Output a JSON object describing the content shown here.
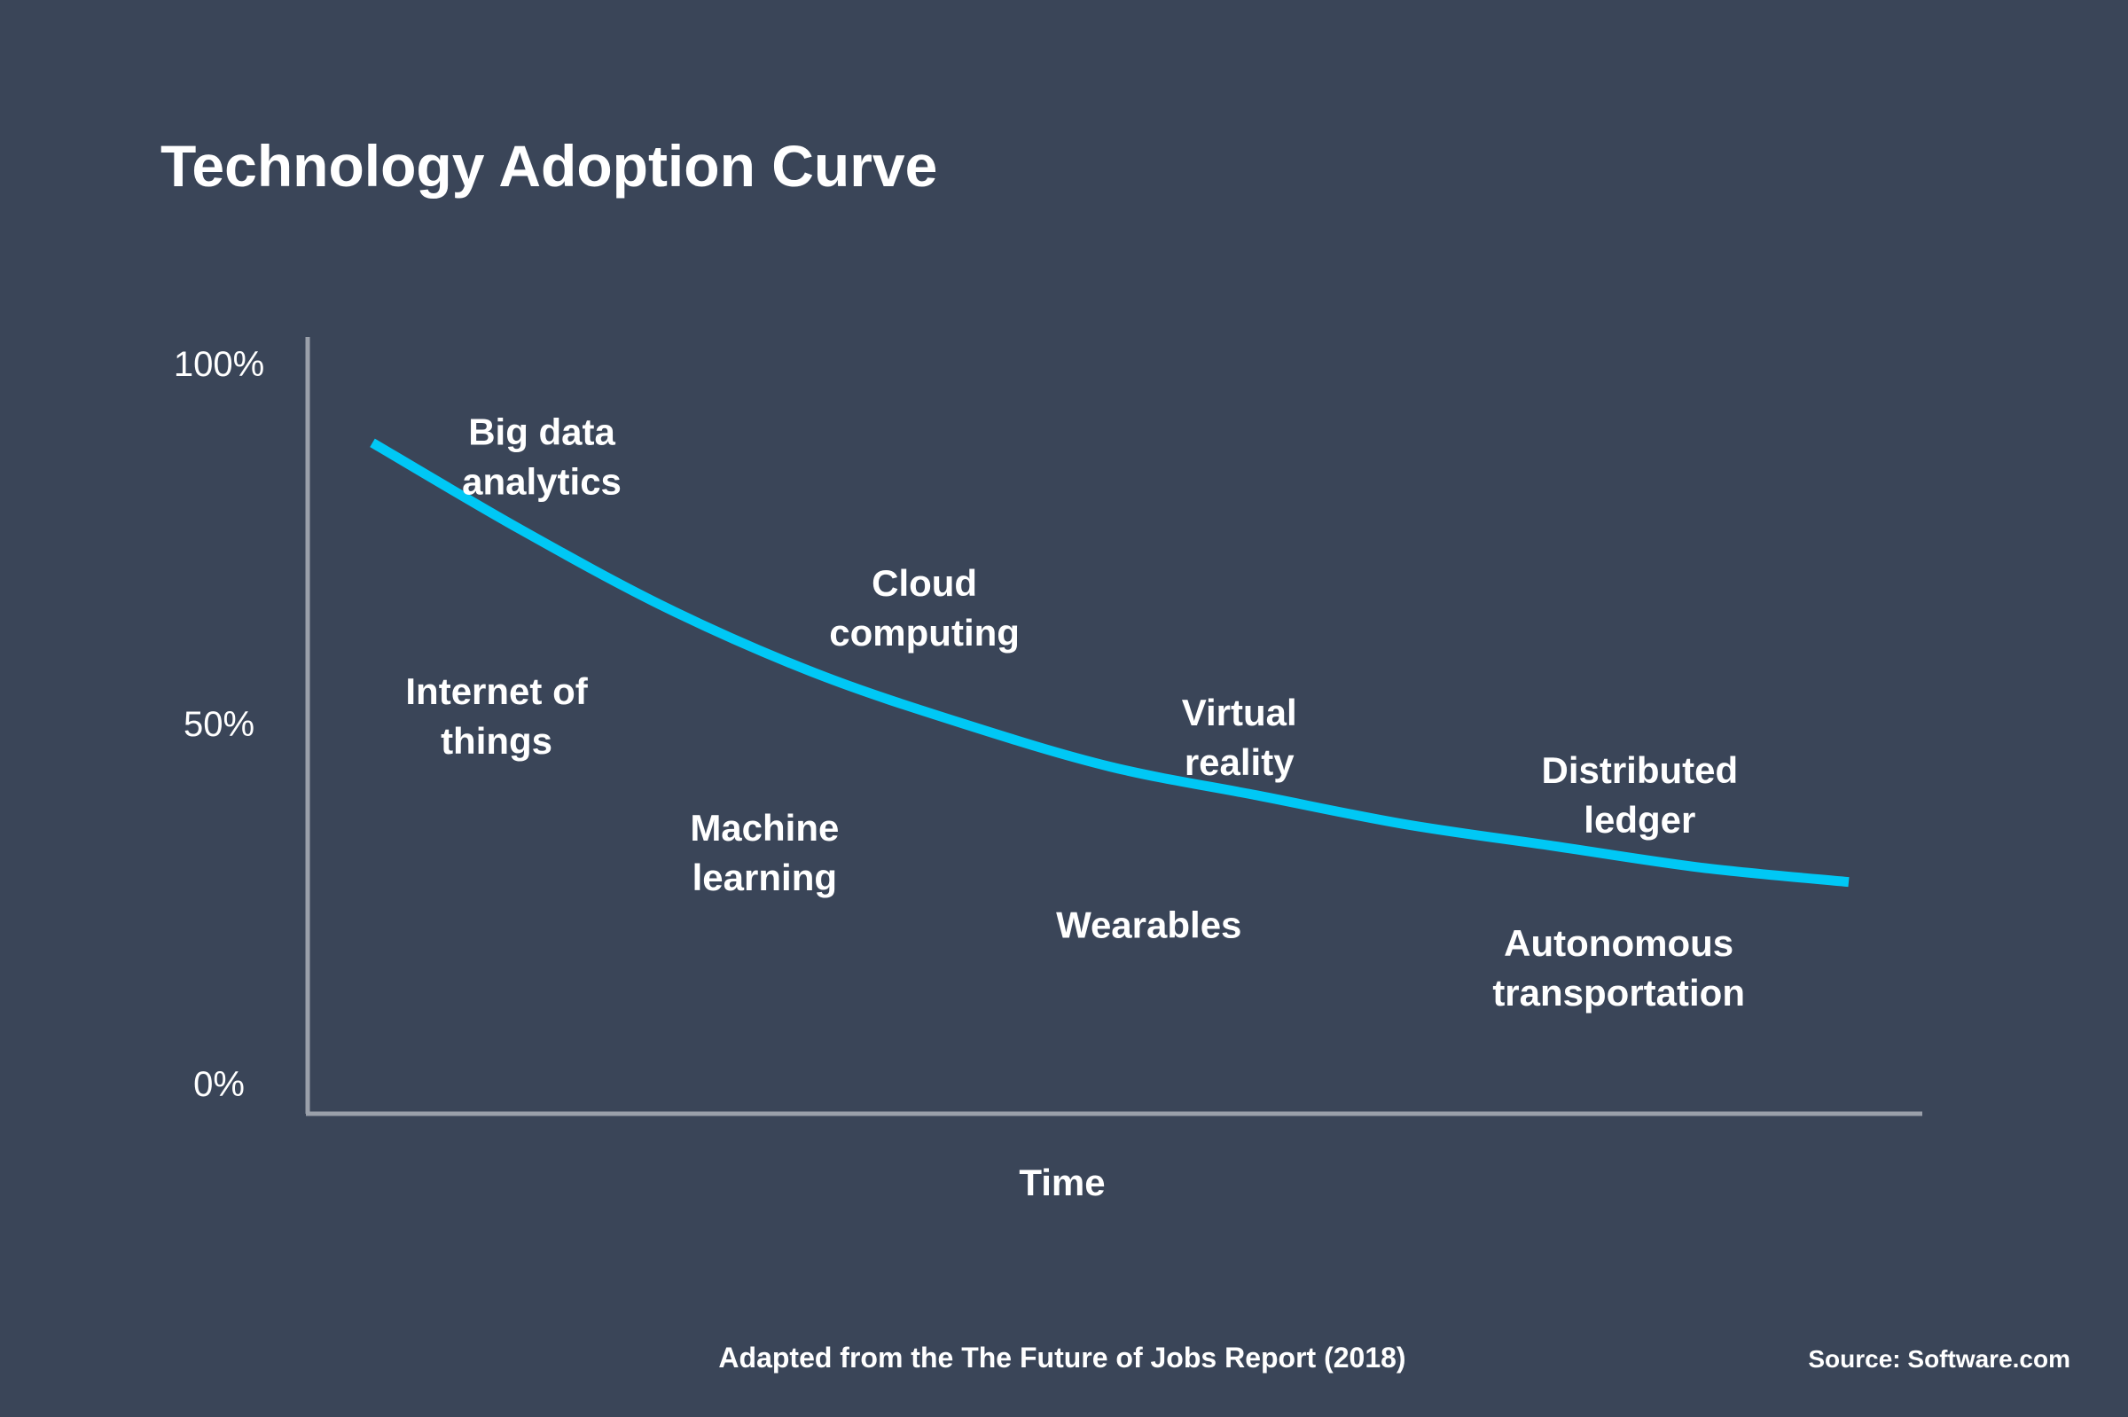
{
  "chart_data": {
    "type": "line",
    "title": "Technology Adoption Curve",
    "xlabel": "Time",
    "ylabel": "",
    "y_ticks": [
      "100%",
      "50%",
      "0%"
    ],
    "ylim": [
      0,
      100
    ],
    "grid": false,
    "series": [
      {
        "color": "#00c8f5",
        "points": [
          [
            0.0,
            89
          ],
          [
            0.1,
            77
          ],
          [
            0.2,
            66
          ],
          [
            0.3,
            57
          ],
          [
            0.4,
            50
          ],
          [
            0.5,
            44
          ],
          [
            0.6,
            40
          ],
          [
            0.7,
            36
          ],
          [
            0.8,
            33
          ],
          [
            0.9,
            30
          ],
          [
            1.0,
            28
          ]
        ]
      }
    ],
    "annotations": [
      {
        "text": [
          "Big data",
          "analytics"
        ],
        "x": 0.145,
        "y": 87
      },
      {
        "text": [
          "Cloud",
          "computing"
        ],
        "x": 0.382,
        "y": 66
      },
      {
        "text": [
          "Internet of",
          "things"
        ],
        "x": 0.117,
        "y": 51
      },
      {
        "text": [
          "Virtual",
          "reality"
        ],
        "x": 0.577,
        "y": 48
      },
      {
        "text": [
          "Distributed",
          "ledger"
        ],
        "x": 0.825,
        "y": 40
      },
      {
        "text": [
          "Machine",
          "learning"
        ],
        "x": 0.283,
        "y": 32
      },
      {
        "text": [
          "Wearables"
        ],
        "x": 0.521,
        "y": 22
      },
      {
        "text": [
          "Autonomous",
          "transportation"
        ],
        "x": 0.812,
        "y": 16
      }
    ]
  },
  "footer": {
    "note": "Adapted from the The Future of Jobs Report (2018)",
    "source": "Source: Software.com"
  },
  "colors": {
    "background": "#3a4558",
    "axis": "#9aa0aa",
    "curve": "#00c8f5",
    "text": "#ffffff"
  }
}
